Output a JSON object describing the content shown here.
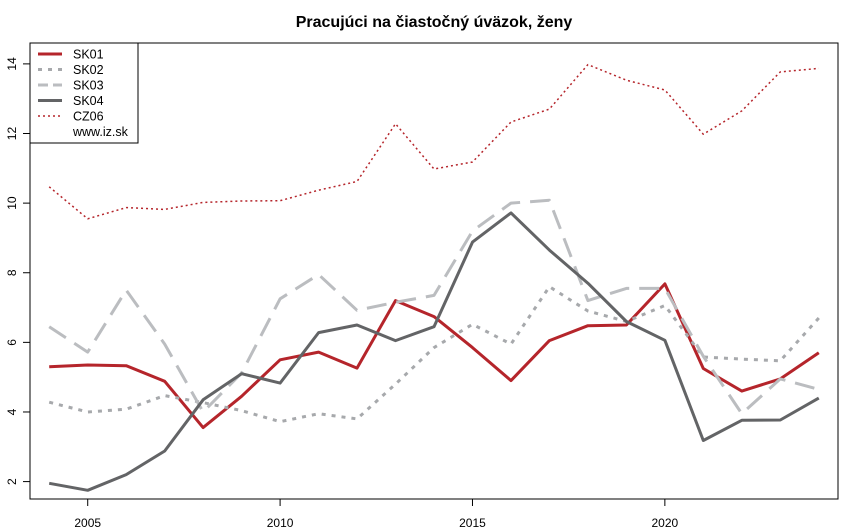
{
  "chart_data": {
    "type": "line",
    "title": "Pracujúci na čiastočný úväzok, ženy",
    "xlabel": "",
    "ylabel": "",
    "x": [
      2004,
      2005,
      2006,
      2007,
      2008,
      2009,
      2010,
      2011,
      2012,
      2013,
      2014,
      2015,
      2016,
      2017,
      2018,
      2019,
      2020,
      2021,
      2022,
      2023,
      2024
    ],
    "xlim": [
      2003.5,
      2024.5
    ],
    "ylim": [
      1.5,
      14.6
    ],
    "x_ticks": [
      2005,
      2010,
      2015,
      2020
    ],
    "y_ticks": [
      2,
      4,
      6,
      8,
      10,
      12,
      14
    ],
    "grid": false,
    "legend_position": "top-left",
    "legend_note": "www.iz.sk",
    "series": [
      {
        "name": "SK01",
        "color": "#b5252b",
        "style": "solid",
        "width": 3,
        "values": [
          5.3,
          5.35,
          5.33,
          4.88,
          3.55,
          4.45,
          5.5,
          5.72,
          5.26,
          7.2,
          6.74,
          5.85,
          4.9,
          6.05,
          6.48,
          6.5,
          7.68,
          5.25,
          4.6,
          4.95,
          5.7
        ]
      },
      {
        "name": "SK02",
        "color": "#a7a9ac",
        "style": "dotted",
        "width": 3,
        "values": [
          4.28,
          4.0,
          4.08,
          4.47,
          4.27,
          4.04,
          3.72,
          3.95,
          3.8,
          4.8,
          5.85,
          6.52,
          5.95,
          7.6,
          6.9,
          6.6,
          7.06,
          5.58,
          5.52,
          5.47,
          6.7
        ]
      },
      {
        "name": "SK03",
        "color": "#bbbdc0",
        "style": "dashed",
        "width": 3,
        "values": [
          6.45,
          5.72,
          7.5,
          5.95,
          4.0,
          5.12,
          7.25,
          7.95,
          6.92,
          7.15,
          7.35,
          9.2,
          10.0,
          10.08,
          7.2,
          7.55,
          7.55,
          5.6,
          3.95,
          4.95,
          4.65
        ]
      },
      {
        "name": "SK04",
        "color": "#636466",
        "style": "solid",
        "width": 3,
        "values": [
          1.95,
          1.75,
          2.2,
          2.88,
          4.35,
          5.1,
          4.83,
          6.28,
          6.5,
          6.05,
          6.45,
          8.88,
          9.72,
          8.65,
          7.7,
          6.6,
          6.06,
          3.18,
          3.76,
          3.77,
          4.4
        ]
      },
      {
        "name": "CZ06",
        "color": "#b5252b",
        "style": "dotted-thin",
        "width": 1.5,
        "values": [
          10.47,
          9.55,
          9.87,
          9.82,
          10.02,
          10.06,
          10.07,
          10.37,
          10.62,
          12.28,
          10.98,
          11.18,
          12.33,
          12.7,
          13.98,
          13.53,
          13.25,
          11.98,
          12.65,
          13.77,
          13.87
        ]
      }
    ]
  }
}
